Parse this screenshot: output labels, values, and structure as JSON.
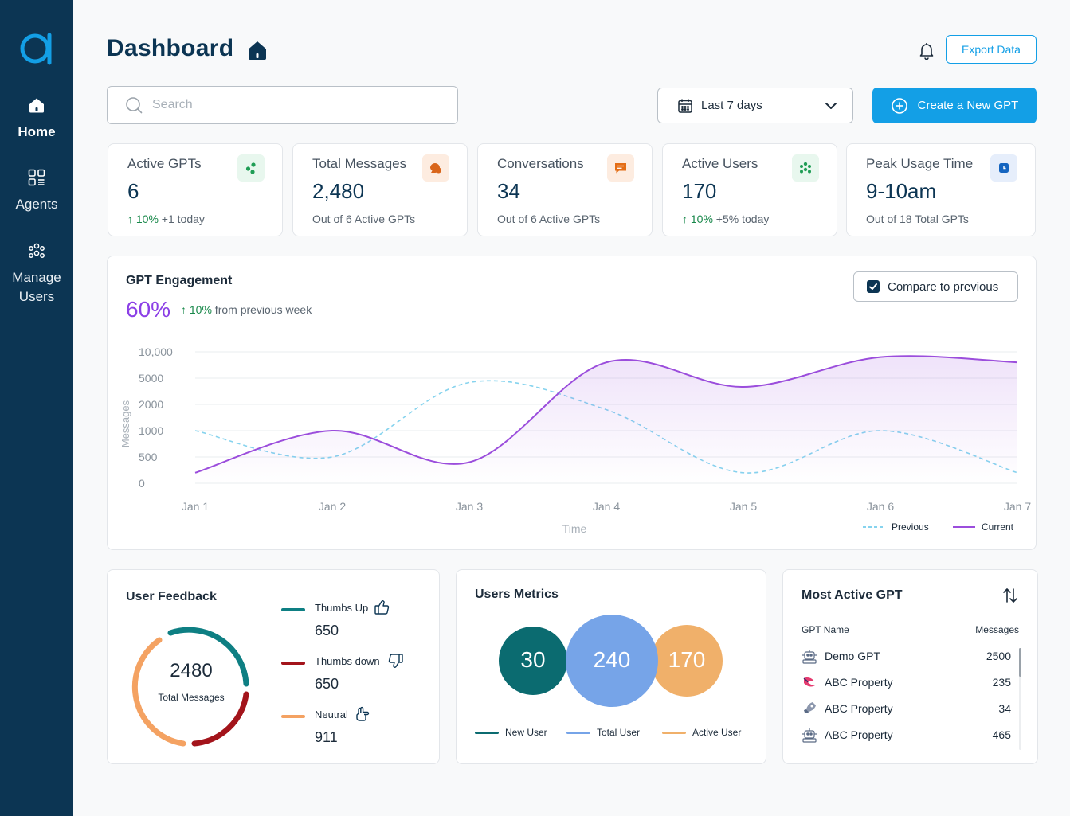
{
  "sidebar": {
    "logo_name": "logo",
    "items": [
      {
        "label": "Home",
        "icon": "home-icon",
        "active": true
      },
      {
        "label": "Agents",
        "icon": "grid-icon",
        "active": false
      },
      {
        "label": "Manage\nUsers",
        "icon": "users-icon",
        "active": false
      }
    ]
  },
  "header": {
    "title": "Dashboard",
    "export_label": "Export Data"
  },
  "toolbar": {
    "search_placeholder": "Search",
    "date_range": "Last 7 days",
    "create_label": "Create a New GPT"
  },
  "stats": [
    {
      "label": "Active GPTs",
      "value": "6",
      "change": "10%",
      "sub": " +1 today",
      "trend": "up",
      "icon": "dots-icon",
      "icon_color": "#1f9d55",
      "icon_bg": "#e8f7ee"
    },
    {
      "label": "Total Messages",
      "value": "2,480",
      "sub": "Out of 6 Active GPTs",
      "icon": "chat-bubbles-icon",
      "icon_color": "#d9651a",
      "icon_bg": "#fdece0"
    },
    {
      "label": "Conversations",
      "value": "34",
      "sub": "Out of 6 Active GPTs",
      "icon": "message-icon",
      "icon_color": "#e46d15",
      "icon_bg": "#fdece0"
    },
    {
      "label": "Active Users",
      "value": "170",
      "change": "10%",
      "sub": " +5% today",
      "trend": "up",
      "icon": "people-dots-icon",
      "icon_color": "#1f9d55",
      "icon_bg": "#e8f7ee"
    },
    {
      "label": "Peak Usage Time",
      "value": "9-10am",
      "sub": "Out of 18 Total GPTs",
      "icon": "clock-icon",
      "icon_color": "#1565c0",
      "icon_bg": "#e6eefb"
    }
  ],
  "engagement": {
    "title": "GPT Engagement",
    "percent": "60%",
    "change": "10%",
    "change_text": " from previous week",
    "compare_label": "Compare to previous",
    "compare_checked": true
  },
  "chart_data": {
    "type": "line",
    "x": [
      "Jan 1",
      "Jan 2",
      "Jan 3",
      "Jan 4",
      "Jan 5",
      "Jan 6",
      "Jan 7"
    ],
    "y_ticks": [
      "10,000",
      "5000",
      "2000",
      "1000",
      "500",
      "0"
    ],
    "ylabel": "Messages",
    "xlabel": "Time",
    "y_scale": "nonlinear (tick-indexed)",
    "grid": true,
    "legend_position": "bottom-right",
    "series": [
      {
        "name": "Previous",
        "style": "dashed",
        "color": "#86d3ee",
        "values": [
          1000,
          500,
          4500,
          1800,
          200,
          1000,
          200
        ]
      },
      {
        "name": "Current",
        "style": "solid",
        "color": "#9b4ddc",
        "values": [
          200,
          1000,
          400,
          8000,
          4000,
          9000,
          8000
        ]
      }
    ]
  },
  "feedback": {
    "title": "User Feedback",
    "total": "2480",
    "total_label": "Total Messages",
    "items": [
      {
        "label": "Thumbs Up",
        "value": "650",
        "color": "#0e7f83",
        "icon": "thumbs-up-icon"
      },
      {
        "label": "Thumbs down",
        "value": "650",
        "color": "#a3141b",
        "icon": "thumbs-down-icon"
      },
      {
        "label": "Neutral",
        "value": "911",
        "color": "#f4a262",
        "icon": "neutral-hand-icon"
      }
    ]
  },
  "metrics": {
    "title": "Users Metrics",
    "circles": [
      {
        "label": "New User",
        "value": "30",
        "color": "#0b6b70"
      },
      {
        "label": "Total User",
        "value": "240",
        "color": "#76a4e8"
      },
      {
        "label": "Active User",
        "value": "170",
        "color": "#f0b06a"
      }
    ]
  },
  "active_gpt": {
    "title": "Most Active GPT",
    "col_name": "GPT Name",
    "col_messages": "Messages",
    "rows": [
      {
        "name": "Demo GPT",
        "messages": "2500",
        "icon": "robot-icon"
      },
      {
        "name": "ABC Property",
        "messages": "235",
        "icon": "bird-icon"
      },
      {
        "name": "ABC Property",
        "messages": "34",
        "icon": "rocket-icon"
      },
      {
        "name": "ABC Property",
        "messages": "465",
        "icon": "robot-icon"
      }
    ]
  }
}
